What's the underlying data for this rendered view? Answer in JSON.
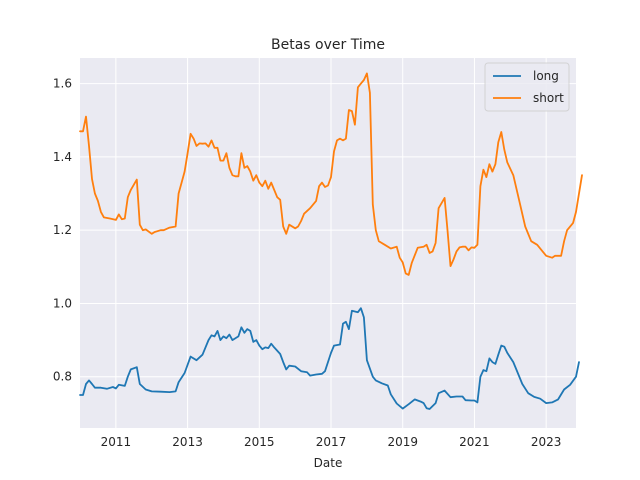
{
  "chart_data": {
    "type": "line",
    "title": "Betas over Time",
    "xlabel": "Date",
    "ylabel": "",
    "xlim": [
      "2010-01-01",
      "2023-10-31"
    ],
    "ylim": [
      0.66,
      1.67
    ],
    "x_ticks": [
      "2011",
      "2013",
      "2015",
      "2017",
      "2019",
      "2021",
      "2023"
    ],
    "y_ticks": [
      0.8,
      1.0,
      1.2,
      1.4,
      1.6
    ],
    "grid": true,
    "legend_position": "top-right",
    "series": [
      {
        "name": "long",
        "color": "#1f77b4",
        "points": [
          [
            "2010-01-01",
            0.75
          ],
          [
            "2010-02-01",
            0.75
          ],
          [
            "2010-03-01",
            0.78
          ],
          [
            "2010-04-01",
            0.79
          ],
          [
            "2010-05-01",
            0.78
          ],
          [
            "2010-06-01",
            0.77
          ],
          [
            "2010-08-01",
            0.77
          ],
          [
            "2010-10-01",
            0.767
          ],
          [
            "2010-12-01",
            0.772
          ],
          [
            "2011-01-01",
            0.768
          ],
          [
            "2011-02-01",
            0.778
          ],
          [
            "2011-04-01",
            0.775
          ],
          [
            "2011-05-01",
            0.8
          ],
          [
            "2011-06-01",
            0.82
          ],
          [
            "2011-08-01",
            0.826
          ],
          [
            "2011-09-01",
            0.78
          ],
          [
            "2011-11-01",
            0.765
          ],
          [
            "2012-01-01",
            0.76
          ],
          [
            "2012-04-01",
            0.759
          ],
          [
            "2012-07-01",
            0.758
          ],
          [
            "2012-09-01",
            0.76
          ],
          [
            "2012-10-01",
            0.785
          ],
          [
            "2012-12-01",
            0.81
          ],
          [
            "2013-02-01",
            0.855
          ],
          [
            "2013-04-01",
            0.845
          ],
          [
            "2013-06-01",
            0.86
          ],
          [
            "2013-08-01",
            0.9
          ],
          [
            "2013-09-01",
            0.913
          ],
          [
            "2013-10-01",
            0.91
          ],
          [
            "2013-11-01",
            0.925
          ],
          [
            "2013-12-01",
            0.9
          ],
          [
            "2014-01-01",
            0.91
          ],
          [
            "2014-02-01",
            0.905
          ],
          [
            "2014-03-01",
            0.915
          ],
          [
            "2014-04-01",
            0.9
          ],
          [
            "2014-06-01",
            0.91
          ],
          [
            "2014-07-01",
            0.935
          ],
          [
            "2014-08-01",
            0.92
          ],
          [
            "2014-09-01",
            0.93
          ],
          [
            "2014-10-01",
            0.925
          ],
          [
            "2014-11-01",
            0.895
          ],
          [
            "2014-12-01",
            0.9
          ],
          [
            "2015-01-01",
            0.885
          ],
          [
            "2015-02-01",
            0.875
          ],
          [
            "2015-03-01",
            0.88
          ],
          [
            "2015-04-01",
            0.878
          ],
          [
            "2015-05-01",
            0.89
          ],
          [
            "2015-06-01",
            0.88
          ],
          [
            "2015-08-01",
            0.862
          ],
          [
            "2015-09-01",
            0.84
          ],
          [
            "2015-10-01",
            0.82
          ],
          [
            "2015-11-01",
            0.83
          ],
          [
            "2016-01-01",
            0.828
          ],
          [
            "2016-03-01",
            0.815
          ],
          [
            "2016-05-01",
            0.812
          ],
          [
            "2016-06-01",
            0.803
          ],
          [
            "2016-08-01",
            0.806
          ],
          [
            "2016-10-01",
            0.808
          ],
          [
            "2016-11-01",
            0.815
          ],
          [
            "2017-01-01",
            0.865
          ],
          [
            "2017-02-01",
            0.885
          ],
          [
            "2017-04-01",
            0.888
          ],
          [
            "2017-05-01",
            0.945
          ],
          [
            "2017-06-01",
            0.95
          ],
          [
            "2017-07-01",
            0.93
          ],
          [
            "2017-08-01",
            0.98
          ],
          [
            "2017-10-01",
            0.976
          ],
          [
            "2017-11-01",
            0.987
          ],
          [
            "2017-12-01",
            0.962
          ],
          [
            "2018-01-01",
            0.845
          ],
          [
            "2018-03-01",
            0.8
          ],
          [
            "2018-04-01",
            0.79
          ],
          [
            "2018-06-01",
            0.782
          ],
          [
            "2018-08-01",
            0.776
          ],
          [
            "2018-09-01",
            0.752
          ],
          [
            "2018-11-01",
            0.727
          ],
          [
            "2019-01-01",
            0.713
          ],
          [
            "2019-03-01",
            0.725
          ],
          [
            "2019-05-01",
            0.738
          ],
          [
            "2019-07-01",
            0.732
          ],
          [
            "2019-08-01",
            0.728
          ],
          [
            "2019-09-01",
            0.714
          ],
          [
            "2019-10-01",
            0.712
          ],
          [
            "2019-12-01",
            0.728
          ],
          [
            "2020-01-01",
            0.755
          ],
          [
            "2020-03-01",
            0.762
          ],
          [
            "2020-05-01",
            0.744
          ],
          [
            "2020-07-01",
            0.746
          ],
          [
            "2020-09-01",
            0.746
          ],
          [
            "2020-10-01",
            0.736
          ],
          [
            "2020-12-01",
            0.735
          ],
          [
            "2021-01-01",
            0.735
          ],
          [
            "2021-02-01",
            0.73
          ],
          [
            "2021-03-01",
            0.8
          ],
          [
            "2021-04-01",
            0.818
          ],
          [
            "2021-05-01",
            0.815
          ],
          [
            "2021-06-01",
            0.85
          ],
          [
            "2021-07-01",
            0.84
          ],
          [
            "2021-08-01",
            0.835
          ],
          [
            "2021-09-01",
            0.86
          ],
          [
            "2021-10-01",
            0.885
          ],
          [
            "2021-11-01",
            0.882
          ],
          [
            "2021-12-01",
            0.865
          ],
          [
            "2022-02-01",
            0.84
          ],
          [
            "2022-03-01",
            0.82
          ],
          [
            "2022-05-01",
            0.78
          ],
          [
            "2022-07-01",
            0.755
          ],
          [
            "2022-09-01",
            0.745
          ],
          [
            "2022-11-01",
            0.74
          ],
          [
            "2023-01-01",
            0.728
          ],
          [
            "2023-03-01",
            0.73
          ],
          [
            "2023-05-01",
            0.738
          ],
          [
            "2023-07-01",
            0.765
          ],
          [
            "2023-09-01",
            0.778
          ],
          [
            "2023-11-01",
            0.8
          ],
          [
            "2023-12-01",
            0.84
          ]
        ]
      },
      {
        "name": "short",
        "color": "#ff7f0e",
        "points": [
          [
            "2010-01-01",
            1.47
          ],
          [
            "2010-02-01",
            1.47
          ],
          [
            "2010-03-01",
            1.51
          ],
          [
            "2010-04-01",
            1.43
          ],
          [
            "2010-05-01",
            1.34
          ],
          [
            "2010-06-01",
            1.3
          ],
          [
            "2010-07-01",
            1.28
          ],
          [
            "2010-08-01",
            1.25
          ],
          [
            "2010-09-01",
            1.235
          ],
          [
            "2010-11-01",
            1.232
          ],
          [
            "2011-01-01",
            1.228
          ],
          [
            "2011-02-01",
            1.243
          ],
          [
            "2011-03-01",
            1.23
          ],
          [
            "2011-04-01",
            1.232
          ],
          [
            "2011-05-01",
            1.29
          ],
          [
            "2011-06-01",
            1.31
          ],
          [
            "2011-08-01",
            1.338
          ],
          [
            "2011-09-01",
            1.215
          ],
          [
            "2011-10-01",
            1.2
          ],
          [
            "2011-11-01",
            1.202
          ],
          [
            "2012-01-01",
            1.19
          ],
          [
            "2012-02-01",
            1.195
          ],
          [
            "2012-04-01",
            1.2
          ],
          [
            "2012-05-01",
            1.2
          ],
          [
            "2012-07-01",
            1.207
          ],
          [
            "2012-09-01",
            1.21
          ],
          [
            "2012-10-01",
            1.3
          ],
          [
            "2012-11-01",
            1.33
          ],
          [
            "2012-12-01",
            1.36
          ],
          [
            "2013-01-01",
            1.41
          ],
          [
            "2013-02-01",
            1.463
          ],
          [
            "2013-03-01",
            1.45
          ],
          [
            "2013-04-01",
            1.43
          ],
          [
            "2013-05-01",
            1.437
          ],
          [
            "2013-06-01",
            1.436
          ],
          [
            "2013-07-01",
            1.437
          ],
          [
            "2013-08-01",
            1.428
          ],
          [
            "2013-09-01",
            1.445
          ],
          [
            "2013-10-01",
            1.425
          ],
          [
            "2013-11-01",
            1.425
          ],
          [
            "2013-12-01",
            1.39
          ],
          [
            "2014-01-01",
            1.39
          ],
          [
            "2014-02-01",
            1.41
          ],
          [
            "2014-03-01",
            1.37
          ],
          [
            "2014-04-01",
            1.35
          ],
          [
            "2014-05-01",
            1.347
          ],
          [
            "2014-06-01",
            1.347
          ],
          [
            "2014-07-01",
            1.41
          ],
          [
            "2014-08-01",
            1.37
          ],
          [
            "2014-09-01",
            1.375
          ],
          [
            "2014-10-01",
            1.36
          ],
          [
            "2014-11-01",
            1.335
          ],
          [
            "2014-12-01",
            1.35
          ],
          [
            "2015-01-01",
            1.33
          ],
          [
            "2015-02-01",
            1.32
          ],
          [
            "2015-03-01",
            1.335
          ],
          [
            "2015-04-01",
            1.313
          ],
          [
            "2015-05-01",
            1.33
          ],
          [
            "2015-06-01",
            1.31
          ],
          [
            "2015-07-01",
            1.29
          ],
          [
            "2015-08-01",
            1.283
          ],
          [
            "2015-09-01",
            1.21
          ],
          [
            "2015-10-01",
            1.19
          ],
          [
            "2015-11-01",
            1.215
          ],
          [
            "2016-01-01",
            1.205
          ],
          [
            "2016-02-01",
            1.21
          ],
          [
            "2016-03-01",
            1.225
          ],
          [
            "2016-04-01",
            1.245
          ],
          [
            "2016-06-01",
            1.26
          ],
          [
            "2016-08-01",
            1.28
          ],
          [
            "2016-09-01",
            1.32
          ],
          [
            "2016-10-01",
            1.33
          ],
          [
            "2016-11-01",
            1.318
          ],
          [
            "2016-12-01",
            1.322
          ],
          [
            "2017-01-01",
            1.345
          ],
          [
            "2017-02-01",
            1.415
          ],
          [
            "2017-03-01",
            1.445
          ],
          [
            "2017-04-01",
            1.45
          ],
          [
            "2017-05-01",
            1.445
          ],
          [
            "2017-06-01",
            1.45
          ],
          [
            "2017-07-01",
            1.528
          ],
          [
            "2017-08-01",
            1.525
          ],
          [
            "2017-09-01",
            1.488
          ],
          [
            "2017-10-01",
            1.59
          ],
          [
            "2017-11-01",
            1.6
          ],
          [
            "2017-12-01",
            1.61
          ],
          [
            "2018-01-01",
            1.628
          ],
          [
            "2018-02-01",
            1.575
          ],
          [
            "2018-03-01",
            1.27
          ],
          [
            "2018-04-01",
            1.2
          ],
          [
            "2018-05-01",
            1.17
          ],
          [
            "2018-07-01",
            1.16
          ],
          [
            "2018-09-01",
            1.15
          ],
          [
            "2018-11-01",
            1.155
          ],
          [
            "2018-12-01",
            1.125
          ],
          [
            "2019-01-01",
            1.112
          ],
          [
            "2019-02-01",
            1.082
          ],
          [
            "2019-03-01",
            1.078
          ],
          [
            "2019-04-01",
            1.11
          ],
          [
            "2019-06-01",
            1.152
          ],
          [
            "2019-08-01",
            1.155
          ],
          [
            "2019-09-01",
            1.16
          ],
          [
            "2019-10-01",
            1.138
          ],
          [
            "2019-11-01",
            1.142
          ],
          [
            "2019-12-01",
            1.165
          ],
          [
            "2020-01-01",
            1.26
          ],
          [
            "2020-03-01",
            1.288
          ],
          [
            "2020-04-01",
            1.2
          ],
          [
            "2020-05-01",
            1.102
          ],
          [
            "2020-06-01",
            1.12
          ],
          [
            "2020-07-01",
            1.142
          ],
          [
            "2020-08-01",
            1.153
          ],
          [
            "2020-09-01",
            1.155
          ],
          [
            "2020-10-01",
            1.155
          ],
          [
            "2020-11-01",
            1.145
          ],
          [
            "2020-12-01",
            1.153
          ],
          [
            "2021-01-01",
            1.152
          ],
          [
            "2021-02-01",
            1.16
          ],
          [
            "2021-03-01",
            1.32
          ],
          [
            "2021-04-01",
            1.365
          ],
          [
            "2021-05-01",
            1.345
          ],
          [
            "2021-06-01",
            1.38
          ],
          [
            "2021-07-01",
            1.36
          ],
          [
            "2021-08-01",
            1.38
          ],
          [
            "2021-09-01",
            1.44
          ],
          [
            "2021-10-01",
            1.468
          ],
          [
            "2021-11-01",
            1.42
          ],
          [
            "2021-12-01",
            1.385
          ],
          [
            "2022-02-01",
            1.35
          ],
          [
            "2022-04-01",
            1.28
          ],
          [
            "2022-06-01",
            1.21
          ],
          [
            "2022-08-01",
            1.17
          ],
          [
            "2022-10-01",
            1.16
          ],
          [
            "2022-12-01",
            1.14
          ],
          [
            "2023-01-01",
            1.13
          ],
          [
            "2023-03-01",
            1.125
          ],
          [
            "2023-04-01",
            1.13
          ],
          [
            "2023-06-01",
            1.13
          ],
          [
            "2023-07-01",
            1.17
          ],
          [
            "2023-08-01",
            1.2
          ],
          [
            "2023-10-01",
            1.22
          ],
          [
            "2023-11-01",
            1.25
          ],
          [
            "2023-12-01",
            1.3
          ],
          [
            "2024-01-01",
            1.35
          ]
        ]
      }
    ]
  }
}
